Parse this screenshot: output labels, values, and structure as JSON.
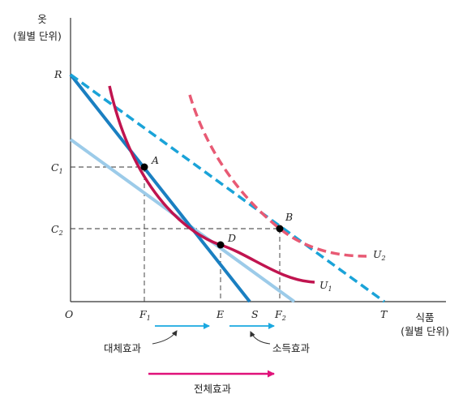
{
  "axes": {
    "y_title": "옷",
    "y_unit": "(월별 단위)",
    "x_title": "식품",
    "x_unit": "(월별 단위)",
    "origin": "O"
  },
  "y_ticks": {
    "r": "R",
    "c1": {
      "base": "C",
      "sub": "1"
    },
    "c2": {
      "base": "C",
      "sub": "2"
    }
  },
  "x_ticks": {
    "f1": {
      "base": "F",
      "sub": "1"
    },
    "e": "E",
    "s": "S",
    "f2": {
      "base": "F",
      "sub": "2"
    },
    "t": "T"
  },
  "points": {
    "a": "A",
    "b": "B",
    "d": "D"
  },
  "curves": {
    "u1": {
      "base": "U",
      "sub": "1"
    },
    "u2": {
      "base": "U",
      "sub": "2"
    }
  },
  "effects": {
    "substitution": "대체효과",
    "income": "소득효과",
    "total": "전체효과"
  },
  "colors": {
    "budget_dark": "#1a7fc1",
    "budget_light": "#9ccbe9",
    "budget_dashed": "#1aa3d8",
    "u1": "#c0144f",
    "u2": "#e85a74",
    "arrow_blue": "#1aa8e0",
    "arrow_total": "#e0127a",
    "axis": "#333333"
  }
}
